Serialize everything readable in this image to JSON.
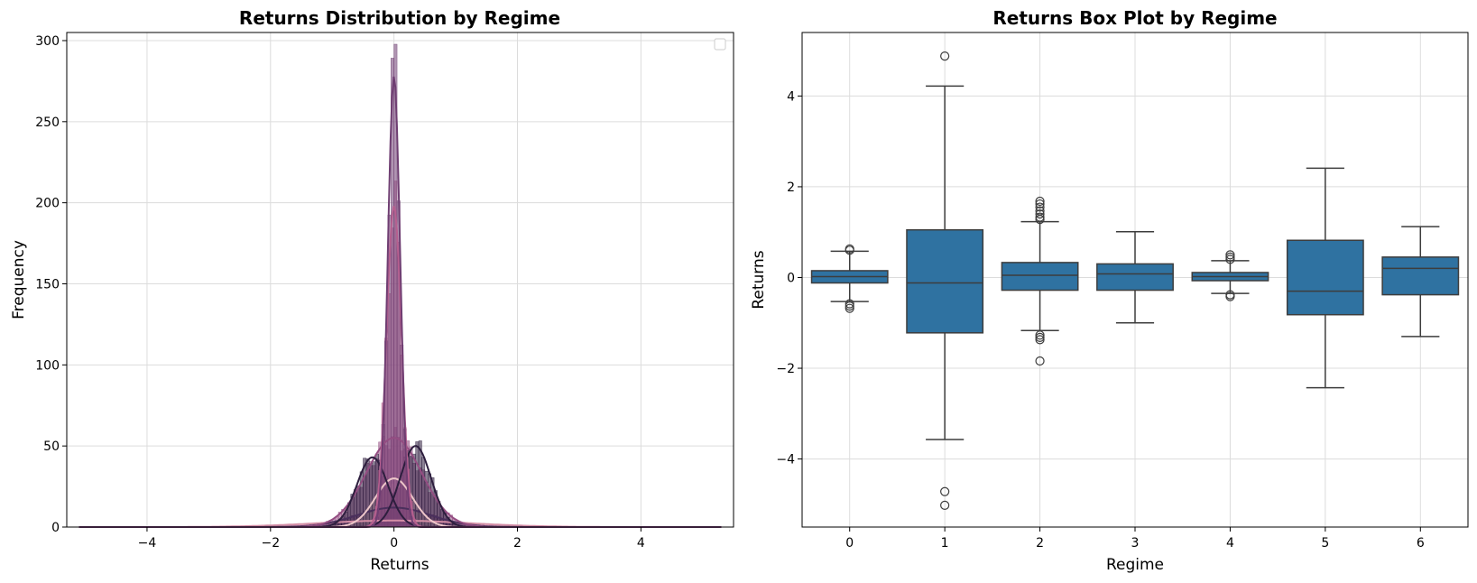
{
  "chart_data": [
    {
      "type": "histogram",
      "title": "Returns Distribution by Regime",
      "xlabel": "Returns",
      "ylabel": "Frequency",
      "xlim": [
        -5.3,
        5.5
      ],
      "ylim": [
        0,
        305
      ],
      "xticks": [
        -4,
        -2,
        0,
        2,
        4
      ],
      "yticks": [
        0,
        50,
        100,
        150,
        200,
        250,
        300
      ],
      "grid": true,
      "legend": "top-right (empty)",
      "palette": [
        "#2d1e3e",
        "#4a2f5c",
        "#6f3e72",
        "#944d82",
        "#b65f8f",
        "#d48ea6",
        "#edc6c9"
      ],
      "regimes": [
        {
          "regime": 0,
          "center": -0.35,
          "width": 0.25,
          "peak": 43
        },
        {
          "regime": 0,
          "center": 0.35,
          "width": 0.25,
          "peak": 50
        },
        {
          "regime": 1,
          "center": 0.0,
          "width": 0.6,
          "peak": 12
        },
        {
          "regime": 2,
          "center": 0.0,
          "width": 0.1,
          "peak": 278
        },
        {
          "regime": 3,
          "center": 0.0,
          "width": 0.45,
          "peak": 55
        },
        {
          "regime": 4,
          "center": 0.0,
          "width": 0.12,
          "peak": 198
        },
        {
          "regime": 5,
          "center": 0.0,
          "width": 1.2,
          "peak": 4
        },
        {
          "regime": 6,
          "center": 0.0,
          "width": 0.3,
          "peak": 30
        }
      ]
    },
    {
      "type": "box",
      "title": "Returns Box Plot by Regime",
      "xlabel": "Regime",
      "ylabel": "Returns",
      "ylim": [
        -5.5,
        5.4
      ],
      "yticks": [
        -4,
        -2,
        0,
        2,
        4
      ],
      "categories": [
        "0",
        "1",
        "2",
        "3",
        "4",
        "5",
        "6"
      ],
      "grid": true,
      "color": "#2f72a1",
      "boxes": [
        {
          "q1": -0.12,
          "median": 0.02,
          "q3": 0.15,
          "whislo": -0.53,
          "whishi": 0.58,
          "fliers": [
            0.6,
            0.63,
            -0.58,
            -0.63,
            -0.68
          ]
        },
        {
          "q1": -1.22,
          "median": -0.12,
          "q3": 1.05,
          "whislo": -3.57,
          "whishi": 4.22,
          "fliers": [
            4.88,
            -4.72,
            -5.02
          ]
        },
        {
          "q1": -0.28,
          "median": 0.05,
          "q3": 0.33,
          "whislo": -1.17,
          "whishi": 1.23,
          "fliers": [
            1.28,
            1.33,
            1.4,
            1.47,
            1.55,
            1.62,
            1.68,
            -1.27,
            -1.32,
            -1.37,
            -1.84
          ]
        },
        {
          "q1": -0.28,
          "median": 0.08,
          "q3": 0.3,
          "whislo": -1.0,
          "whishi": 1.01,
          "fliers": []
        },
        {
          "q1": -0.07,
          "median": 0.02,
          "q3": 0.11,
          "whislo": -0.35,
          "whishi": 0.37,
          "fliers": [
            0.4,
            0.45,
            0.5,
            -0.38,
            -0.42
          ]
        },
        {
          "q1": -0.82,
          "median": -0.3,
          "q3": 0.82,
          "whislo": -2.43,
          "whishi": 2.41,
          "fliers": []
        },
        {
          "q1": -0.38,
          "median": 0.2,
          "q3": 0.45,
          "whislo": -1.3,
          "whishi": 1.12,
          "fliers": []
        }
      ]
    }
  ]
}
